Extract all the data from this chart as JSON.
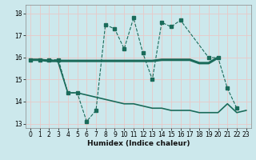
{
  "xlabel": "Humidex (Indice chaleur)",
  "bg_color": "#cce8ec",
  "grid_color": "#e8c8c8",
  "line_color": "#1a6b5a",
  "ylim": [
    12.8,
    18.4
  ],
  "yticks": [
    13,
    14,
    15,
    16,
    17,
    18
  ],
  "xticks": [
    0,
    1,
    2,
    3,
    4,
    5,
    6,
    7,
    8,
    9,
    10,
    11,
    12,
    13,
    14,
    15,
    16,
    17,
    18,
    19,
    20,
    21,
    22,
    23
  ],
  "tick_fontsize": 5.5,
  "xlabel_fontsize": 6.5,
  "series1_x": [
    0,
    1,
    2,
    3,
    4,
    5,
    6,
    7,
    8,
    9,
    10,
    11,
    12,
    13,
    14,
    15,
    16,
    19,
    20,
    21,
    22
  ],
  "series1_y": [
    15.9,
    15.9,
    15.9,
    15.9,
    14.4,
    14.4,
    13.1,
    13.6,
    17.5,
    17.3,
    16.4,
    17.8,
    16.2,
    15.0,
    17.6,
    17.4,
    17.7,
    16.0,
    16.0,
    14.6,
    13.7
  ],
  "series2_x": [
    0,
    1,
    2,
    3,
    4,
    5,
    6,
    7,
    8,
    9,
    10,
    11,
    12,
    13,
    14,
    15,
    16,
    17,
    18,
    19,
    20
  ],
  "series2_y": [
    15.9,
    15.9,
    15.85,
    15.85,
    15.85,
    15.85,
    15.85,
    15.85,
    15.85,
    15.85,
    15.85,
    15.85,
    15.85,
    15.85,
    15.9,
    15.9,
    15.9,
    15.9,
    15.75,
    15.75,
    16.0
  ],
  "series3_x": [
    3,
    4,
    5,
    6,
    7,
    8,
    9,
    10,
    11,
    12,
    13,
    14,
    15,
    16,
    17,
    18,
    19,
    20,
    21,
    22,
    23
  ],
  "series3_y": [
    15.75,
    14.4,
    14.4,
    14.3,
    14.2,
    14.1,
    14.0,
    13.9,
    13.9,
    13.8,
    13.7,
    13.7,
    13.6,
    13.6,
    13.6,
    13.5,
    13.5,
    13.5,
    13.9,
    13.5,
    13.6
  ],
  "series4_x": [
    19,
    20,
    21,
    22,
    23
  ],
  "series4_y": [
    15.75,
    16.0,
    16.0,
    14.6,
    13.7
  ]
}
